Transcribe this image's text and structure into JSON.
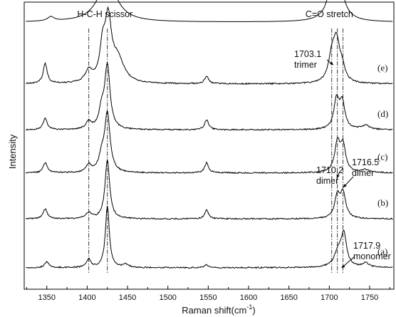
{
  "chart_data": {
    "type": "line",
    "xlabel": "Raman shift(cm",
    "xlabel_sup": "-1",
    "xlabel_close": ")",
    "ylabel": "Intensity",
    "xlim": [
      1322,
      1780
    ],
    "x_ticks": [
      1350,
      1400,
      1450,
      1500,
      1550,
      1600,
      1650,
      1700,
      1750
    ],
    "x_tick_labels": [
      "1350",
      "1400",
      "1450",
      "1500",
      "1550",
      "1600",
      "1650",
      "1700",
      "1750"
    ],
    "y_ticks_shown": false,
    "grid": false,
    "band_labels": [
      {
        "text": "H-C-H scissor",
        "x": 1422
      },
      {
        "text": "C=O stretch",
        "x": 1700
      }
    ],
    "reference_lines": [
      1402,
      1425,
      1703,
      1710,
      1717
    ],
    "series": [
      {
        "label": "",
        "baseline": 0.93,
        "peaks": [
          [
            1355,
            0.015,
            5
          ],
          [
            1425,
            0.145,
            14
          ],
          [
            1708,
            0.27,
            7
          ]
        ]
      },
      {
        "label": "(e)",
        "baseline": 0.715,
        "peaks": [
          [
            1348,
            0.07,
            3
          ],
          [
            1402,
            0.04,
            5
          ],
          [
            1419,
            0.1,
            4
          ],
          [
            1426,
            0.21,
            5
          ],
          [
            1438,
            0.08,
            9
          ],
          [
            1548,
            0.025,
            3
          ],
          [
            1703,
            0.08,
            5
          ],
          [
            1709,
            0.135,
            5
          ],
          [
            1716,
            0.04,
            4
          ]
        ]
      },
      {
        "label": "(d)",
        "baseline": 0.555,
        "peaks": [
          [
            1348,
            0.04,
            3
          ],
          [
            1402,
            0.025,
            4
          ],
          [
            1418,
            0.06,
            4
          ],
          [
            1425,
            0.22,
            4
          ],
          [
            1548,
            0.035,
            3
          ],
          [
            1709,
            0.1,
            4
          ],
          [
            1716,
            0.09,
            4
          ],
          [
            1745,
            0.015,
            6
          ]
        ]
      },
      {
        "label": "(c)",
        "baseline": 0.405,
        "peaks": [
          [
            1348,
            0.035,
            3
          ],
          [
            1402,
            0.025,
            4
          ],
          [
            1418,
            0.05,
            4
          ],
          [
            1425,
            0.205,
            4
          ],
          [
            1548,
            0.035,
            3
          ],
          [
            1710,
            0.1,
            4
          ],
          [
            1717,
            0.09,
            4
          ],
          [
            1745,
            0.01,
            6
          ]
        ]
      },
      {
        "label": "(b)",
        "baseline": 0.245,
        "peaks": [
          [
            1348,
            0.035,
            3
          ],
          [
            1402,
            0.02,
            4
          ],
          [
            1425,
            0.205,
            3.5
          ],
          [
            1548,
            0.03,
            3
          ],
          [
            1710,
            0.075,
            4
          ],
          [
            1717,
            0.085,
            4
          ]
        ]
      },
      {
        "label": "(a)",
        "baseline": 0.075,
        "peaks": [
          [
            1350,
            0.02,
            3
          ],
          [
            1402,
            0.03,
            3
          ],
          [
            1425,
            0.215,
            3
          ],
          [
            1448,
            0.01,
            4
          ],
          [
            1548,
            0.01,
            3
          ],
          [
            1711,
            0.05,
            6
          ],
          [
            1718,
            0.11,
            4
          ],
          [
            1745,
            0.015,
            5
          ]
        ]
      }
    ],
    "annotations": [
      {
        "lines": [
          "1703.1",
          "trimer"
        ],
        "x": 1703.1
      },
      {
        "lines": [
          "1710.2",
          "dimer"
        ],
        "x": 1710.2
      },
      {
        "lines": [
          "1716.5",
          "dimer"
        ],
        "x": 1716.5
      },
      {
        "lines": [
          "1717.9",
          "monomer"
        ],
        "x": 1717.9
      }
    ]
  }
}
